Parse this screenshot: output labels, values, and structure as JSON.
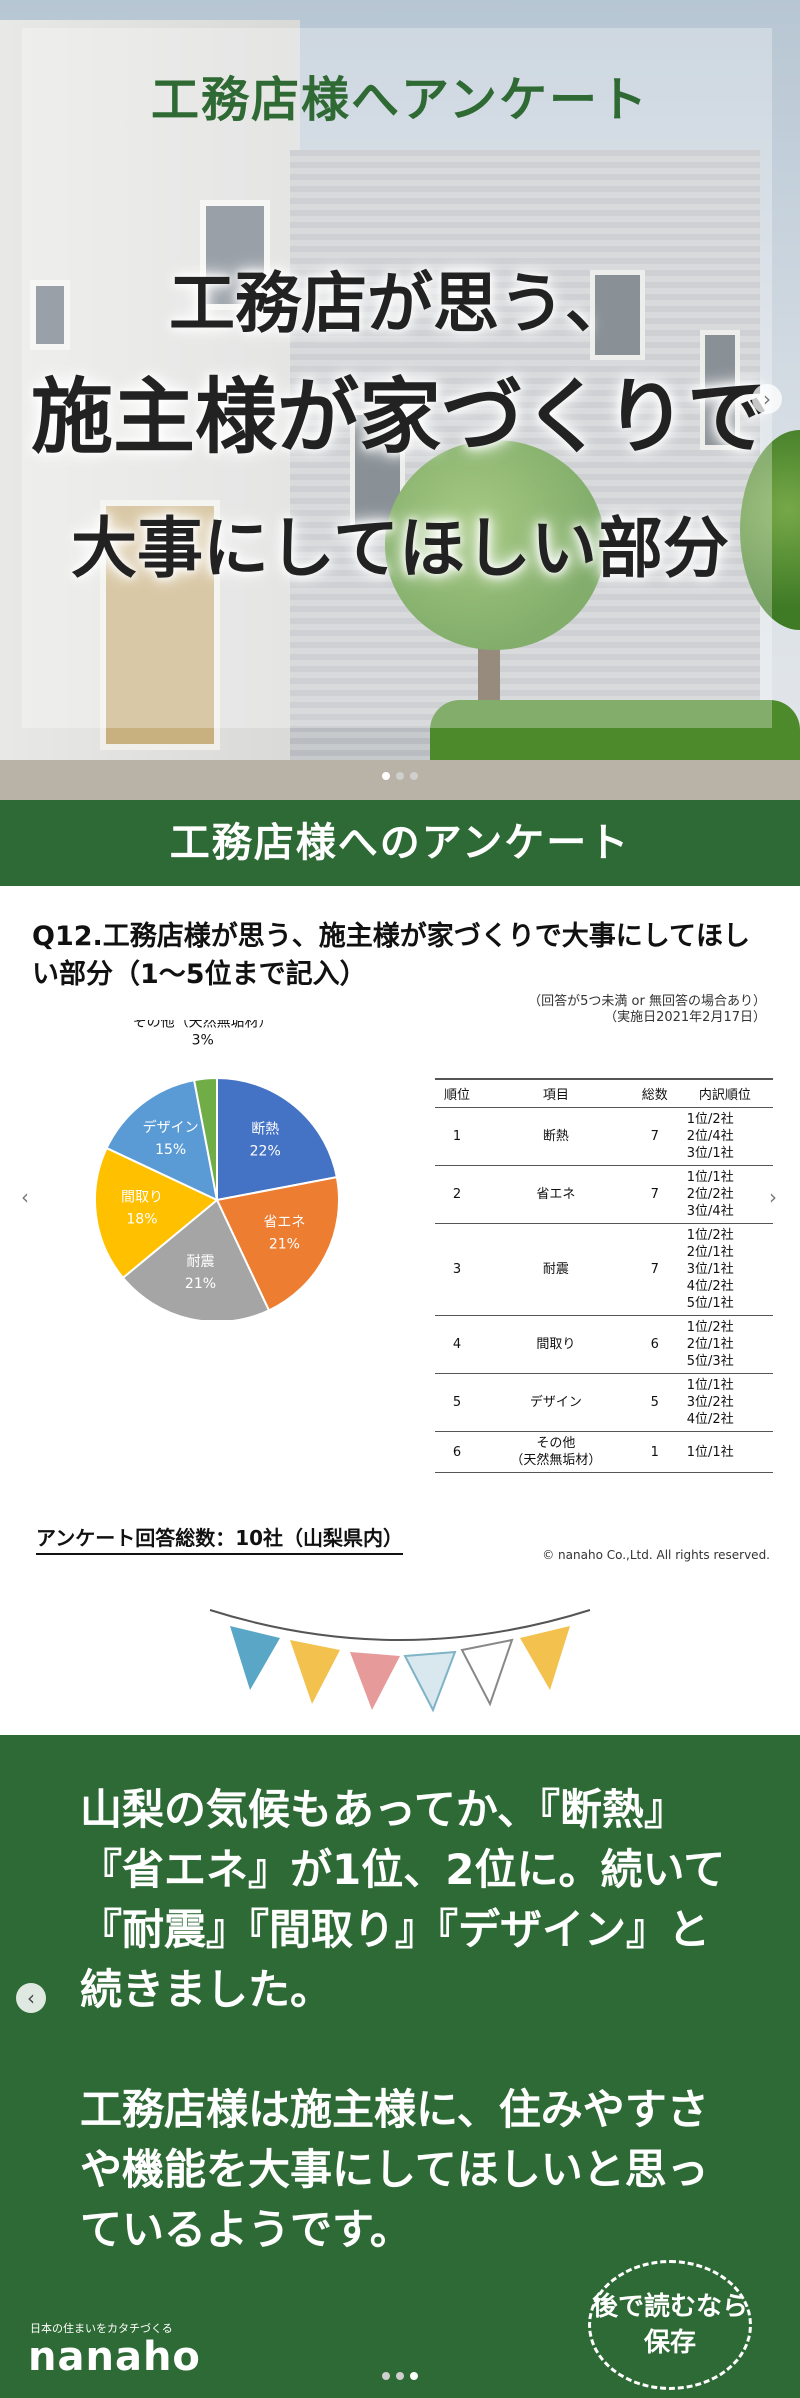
{
  "hero": {
    "label": "工務店様へアンケート",
    "line1": "工務店が思う、",
    "line2": "施主様が家づくりで",
    "line3": "大事にしてほしい部分"
  },
  "survey": {
    "band": "工務店様へのアンケート",
    "question": "Q12.工務店様が思う、施主様が家づくりで大事にしてほしい部分（1〜5位まで記入）",
    "note1": "（回答が5つ未満 or 無回答の場合あり）",
    "note2": "（実施日2021年2月17日）",
    "table": {
      "headers": [
        "順位",
        "項目",
        "総数",
        "内訳順位"
      ],
      "rows": [
        {
          "rank": "1",
          "item": "断熱",
          "total": "7",
          "breakdown": [
            "1位/2社",
            "2位/4社",
            "3位/1社"
          ]
        },
        {
          "rank": "2",
          "item": "省エネ",
          "total": "7",
          "breakdown": [
            "1位/1社",
            "2位/2社",
            "3位/4社"
          ]
        },
        {
          "rank": "3",
          "item": "耐震",
          "total": "7",
          "breakdown": [
            "1位/2社",
            "2位/1社",
            "3位/1社",
            "4位/2社",
            "5位/1社"
          ]
        },
        {
          "rank": "4",
          "item": "間取り",
          "total": "6",
          "breakdown": [
            "1位/2社",
            "2位/1社",
            "5位/3社"
          ]
        },
        {
          "rank": "5",
          "item": "デザイン",
          "total": "5",
          "breakdown": [
            "1位/1社",
            "3位/2社",
            "4位/2社"
          ]
        },
        {
          "rank": "6",
          "item": "その他\n（天然無垢材）",
          "total": "1",
          "breakdown": [
            "1位/1社"
          ]
        }
      ]
    },
    "total_label": "アンケート回答総数：10社（山梨県内）",
    "copyright": "© nanaho Co.,Ltd. All rights reserved."
  },
  "chart_data": {
    "type": "pie",
    "categories": [
      "断熱",
      "省エネ",
      "耐震",
      "間取り",
      "デザイン",
      "その他（天然無垢材）"
    ],
    "values": [
      22,
      21,
      21,
      18,
      15,
      3
    ],
    "labels": [
      "22%",
      "21%",
      "21%",
      "18%",
      "15%",
      "3%"
    ],
    "colors": [
      "#4472c4",
      "#ed7d31",
      "#a5a5a5",
      "#ffc000",
      "#5b9bd5",
      "#70ad47"
    ]
  },
  "comment": {
    "paragraph1": "山梨の気候もあってか、『断熱』『省エネ』が1位、2位に。続いて『耐震』『間取り』『デザイン』と続きました。",
    "paragraph2": "工務店様は施主様に、住みやすさや機能を大事にしてほしいと思っているようです。",
    "stamp": "後で読むなら保存",
    "brand_tagline": "日本の住まいをカタチづくる",
    "brand": "nanaho"
  },
  "icons": {
    "next": "chevron-right-icon",
    "prev": "chevron-left-icon"
  }
}
